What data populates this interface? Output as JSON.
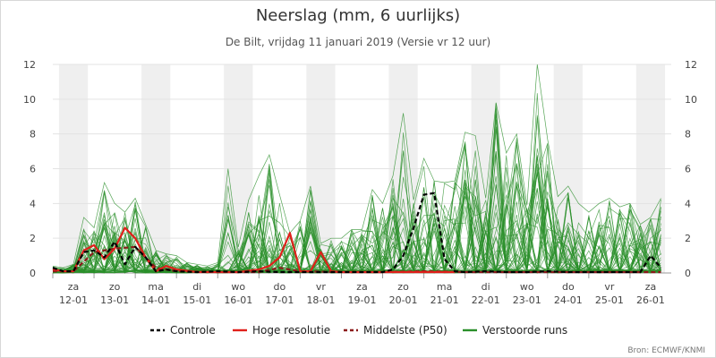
{
  "chart_data": {
    "type": "line",
    "title": "Neerslag (mm, 6 uurlijks)",
    "subtitle": "De Bilt, vrijdag 11 januari 2019 (Versie vr 12 uur)",
    "source": "Bron: ECMWF/KNMI",
    "ylim": [
      0,
      12
    ],
    "yticks": [
      0,
      2,
      4,
      6,
      8,
      10,
      12
    ],
    "xlim": [
      0,
      15
    ],
    "grid": true,
    "legend_position": "bottom",
    "days": [
      {
        "dow": "za",
        "date": "12-01"
      },
      {
        "dow": "zo",
        "date": "13-01"
      },
      {
        "dow": "ma",
        "date": "14-01"
      },
      {
        "dow": "di",
        "date": "15-01"
      },
      {
        "dow": "wo",
        "date": "16-01"
      },
      {
        "dow": "do",
        "date": "17-01"
      },
      {
        "dow": "vr",
        "date": "18-01"
      },
      {
        "dow": "za",
        "date": "19-01"
      },
      {
        "dow": "zo",
        "date": "20-01"
      },
      {
        "dow": "ma",
        "date": "21-01"
      },
      {
        "dow": "di",
        "date": "22-01"
      },
      {
        "dow": "wo",
        "date": "23-01"
      },
      {
        "dow": "do",
        "date": "24-01"
      },
      {
        "dow": "vr",
        "date": "25-01"
      },
      {
        "dow": "za",
        "date": "26-01"
      }
    ],
    "series": [
      {
        "name": "Controle",
        "color": "#000000",
        "dash": true,
        "x": [
          0,
          0.25,
          0.5,
          0.75,
          1,
          1.25,
          1.5,
          1.75,
          2,
          2.25,
          2.5,
          2.75,
          3,
          3.5,
          4,
          4.5,
          5,
          5.5,
          6,
          6.5,
          7,
          7.5,
          8,
          8.25,
          8.5,
          8.75,
          9,
          9.25,
          9.5,
          9.75,
          10,
          10.5,
          11,
          11.5,
          12,
          12.5,
          13,
          13.5,
          14,
          14.25,
          14.5,
          14.75
        ],
        "values": [
          0.3,
          0.1,
          0.1,
          1.2,
          1.3,
          0.9,
          1.8,
          0.5,
          1.5,
          0.9,
          0.1,
          0.2,
          0.1,
          0.05,
          0.1,
          0.05,
          0.1,
          0.05,
          0.05,
          0.05,
          0.05,
          0.05,
          0.05,
          0.2,
          1.0,
          2.6,
          4.5,
          4.6,
          0.8,
          0.1,
          0.05,
          0.1,
          0.05,
          0.05,
          0.1,
          0.05,
          0.05,
          0.05,
          0.05,
          0.05,
          1.0,
          0.3
        ]
      },
      {
        "name": "Hoge resolutie",
        "color": "#e0201b",
        "dash": false,
        "x": [
          0,
          0.25,
          0.5,
          0.75,
          1,
          1.25,
          1.5,
          1.75,
          2,
          2.25,
          2.5,
          2.75,
          3,
          3.5,
          4,
          4.5,
          5,
          5.25,
          5.5,
          5.75,
          6,
          6.25,
          6.5,
          6.75,
          7,
          7.5,
          8,
          8.5,
          9,
          9.5,
          9.75
        ],
        "values": [
          0.2,
          0.1,
          0.1,
          1.3,
          1.6,
          0.8,
          1.4,
          2.6,
          2.0,
          0.9,
          0.1,
          0.4,
          0.2,
          0.05,
          0.05,
          0.05,
          0.2,
          0.4,
          0.9,
          2.3,
          0.1,
          0.1,
          1.2,
          0.1,
          0.05,
          0.05,
          0.05,
          0.05,
          0.05,
          0.05,
          0.05
        ]
      },
      {
        "name": "Middelste (P50)",
        "color": "#8b1a1a",
        "dash": true,
        "x": [
          0,
          0.5,
          1,
          1.5,
          2,
          2.5,
          3,
          4,
          5,
          5.5,
          6,
          7,
          8,
          9,
          10,
          11,
          12,
          13,
          14,
          14.75
        ],
        "values": [
          0.1,
          0.1,
          1.2,
          1.4,
          1.5,
          0.3,
          0.1,
          0.05,
          0.05,
          0.3,
          0.1,
          0.05,
          0.05,
          0.1,
          0.05,
          0.05,
          0.05,
          0.05,
          0.05,
          0.05
        ]
      },
      {
        "name": "Verstoorde runs",
        "color": "#2a8f2a",
        "dash": false,
        "ensemble": true,
        "member_count": 50,
        "x": [
          0,
          0.25,
          0.5,
          0.75,
          1,
          1.25,
          1.5,
          1.75,
          2,
          2.25,
          2.5,
          2.75,
          3,
          3.25,
          3.5,
          3.75,
          4,
          4.25,
          4.5,
          4.75,
          5,
          5.25,
          5.5,
          5.75,
          6,
          6.25,
          6.5,
          6.75,
          7,
          7.25,
          7.5,
          7.75,
          8,
          8.25,
          8.5,
          8.75,
          9,
          9.25,
          9.5,
          9.75,
          10,
          10.25,
          10.5,
          10.75,
          11,
          11.25,
          11.5,
          11.75,
          12,
          12.25,
          12.5,
          12.75,
          13,
          13.25,
          13.5,
          13.75,
          14,
          14.25,
          14.5,
          14.75
        ],
        "envelope_max": [
          0.4,
          0.3,
          0.5,
          3.2,
          2.6,
          5.2,
          4.0,
          3.5,
          4.3,
          2.8,
          1.3,
          1.1,
          1.0,
          0.6,
          0.5,
          0.4,
          0.6,
          6.0,
          1.5,
          4.2,
          5.6,
          6.8,
          4.5,
          2.3,
          3.0,
          5.0,
          1.7,
          2.0,
          2.0,
          2.5,
          2.5,
          4.8,
          4.0,
          5.6,
          9.2,
          4.2,
          6.6,
          5.3,
          5.2,
          5.3,
          8.1,
          7.9,
          4.3,
          9.8,
          6.9,
          8.0,
          3.9,
          12.0,
          7.7,
          4.4,
          5.0,
          4.0,
          3.5,
          4.0,
          4.3,
          3.8,
          4.0,
          2.8,
          3.2,
          4.3
        ]
      }
    ]
  }
}
